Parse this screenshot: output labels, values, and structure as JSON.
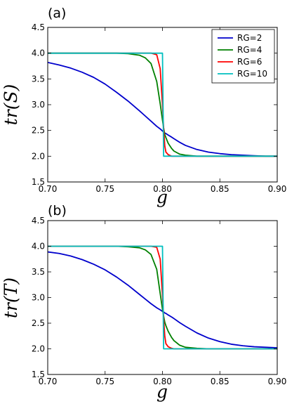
{
  "chart_data": [
    {
      "type": "line",
      "panel_label": "(a)",
      "xlabel": "g",
      "ylabel": "tr(S)",
      "xlim": [
        0.7,
        0.9
      ],
      "ylim": [
        1.5,
        4.5
      ],
      "xticks": [
        "0.70",
        "0.75",
        "0.80",
        "0.85",
        "0.90"
      ],
      "yticks": [
        "1.5",
        "2.0",
        "2.5",
        "3.0",
        "3.5",
        "4.0",
        "4.5"
      ],
      "grid": false,
      "legend": "top-right",
      "x": [
        0.7,
        0.71,
        0.72,
        0.73,
        0.74,
        0.75,
        0.76,
        0.77,
        0.78,
        0.785,
        0.79,
        0.795,
        0.798,
        0.8,
        0.801,
        0.802,
        0.803,
        0.805,
        0.808,
        0.81,
        0.815,
        0.82,
        0.83,
        0.84,
        0.85,
        0.86,
        0.87,
        0.88,
        0.89,
        0.9
      ],
      "series": [
        {
          "name": "RG=2",
          "color": "#0000cc",
          "values": [
            3.82,
            3.77,
            3.71,
            3.63,
            3.53,
            3.4,
            3.24,
            3.07,
            2.88,
            2.78,
            2.68,
            2.58,
            2.53,
            2.49,
            2.47,
            2.45,
            2.44,
            2.41,
            2.37,
            2.34,
            2.27,
            2.21,
            2.13,
            2.08,
            2.05,
            2.03,
            2.02,
            2.01,
            2.0,
            2.0
          ]
        },
        {
          "name": "RG=4",
          "color": "#008000",
          "values": [
            4.0,
            4.0,
            4.0,
            4.0,
            4.0,
            4.0,
            4.0,
            3.99,
            3.96,
            3.91,
            3.8,
            3.45,
            3.02,
            2.7,
            2.55,
            2.42,
            2.36,
            2.25,
            2.15,
            2.1,
            2.04,
            2.02,
            2.0,
            2.0,
            2.0,
            2.0,
            2.0,
            2.0,
            2.0,
            2.0
          ]
        },
        {
          "name": "RG=6",
          "color": "#ff0000",
          "values": [
            4.0,
            4.0,
            4.0,
            4.0,
            4.0,
            4.0,
            4.0,
            4.0,
            4.0,
            4.0,
            4.0,
            3.97,
            3.7,
            3.0,
            2.55,
            2.2,
            2.08,
            2.03,
            2.0,
            2.0,
            2.0,
            2.0,
            2.0,
            2.0,
            2.0,
            2.0,
            2.0,
            2.0,
            2.0,
            2.0
          ]
        },
        {
          "name": "RG=10",
          "color": "#00bfbf",
          "values": [
            4.0,
            4.0,
            4.0,
            4.0,
            4.0,
            4.0,
            4.0,
            4.0,
            4.0,
            4.0,
            4.0,
            4.0,
            4.0,
            4.0,
            2.0,
            2.0,
            2.0,
            2.0,
            2.0,
            2.0,
            2.0,
            2.0,
            2.0,
            2.0,
            2.0,
            2.0,
            2.0,
            2.0,
            2.0,
            2.0
          ]
        }
      ]
    },
    {
      "type": "line",
      "panel_label": "(b)",
      "xlabel": "g",
      "ylabel": "tr(T)",
      "xlim": [
        0.7,
        0.9
      ],
      "ylim": [
        1.5,
        4.5
      ],
      "xticks": [
        "0.70",
        "0.75",
        "0.80",
        "0.85",
        "0.90"
      ],
      "yticks": [
        "1.5",
        "2.0",
        "2.5",
        "3.0",
        "3.5",
        "4.0",
        "4.5"
      ],
      "grid": false,
      "legend": "none",
      "x": [
        0.7,
        0.71,
        0.72,
        0.73,
        0.74,
        0.75,
        0.76,
        0.77,
        0.78,
        0.785,
        0.79,
        0.795,
        0.798,
        0.8,
        0.801,
        0.802,
        0.803,
        0.805,
        0.808,
        0.81,
        0.815,
        0.82,
        0.83,
        0.84,
        0.85,
        0.86,
        0.87,
        0.88,
        0.89,
        0.9
      ],
      "series": [
        {
          "name": "RG=2",
          "color": "#0000cc",
          "values": [
            3.89,
            3.86,
            3.81,
            3.74,
            3.65,
            3.54,
            3.4,
            3.24,
            3.06,
            2.97,
            2.88,
            2.8,
            2.76,
            2.73,
            2.72,
            2.7,
            2.69,
            2.66,
            2.62,
            2.59,
            2.51,
            2.44,
            2.31,
            2.21,
            2.14,
            2.09,
            2.06,
            2.04,
            2.03,
            2.02
          ]
        },
        {
          "name": "RG=4",
          "color": "#008000",
          "values": [
            4.0,
            4.0,
            4.0,
            4.0,
            4.0,
            4.0,
            4.0,
            3.99,
            3.97,
            3.93,
            3.84,
            3.55,
            3.08,
            2.77,
            2.64,
            2.52,
            2.45,
            2.34,
            2.22,
            2.16,
            2.07,
            2.03,
            2.01,
            2.0,
            2.0,
            2.0,
            2.0,
            2.0,
            2.0,
            2.0
          ]
        },
        {
          "name": "RG=6",
          "color": "#ff0000",
          "values": [
            4.0,
            4.0,
            4.0,
            4.0,
            4.0,
            4.0,
            4.0,
            4.0,
            4.0,
            4.0,
            4.0,
            3.98,
            3.75,
            3.05,
            2.6,
            2.25,
            2.1,
            2.04,
            2.01,
            2.0,
            2.0,
            2.0,
            2.0,
            2.0,
            2.0,
            2.0,
            2.0,
            2.0,
            2.0,
            2.0
          ]
        },
        {
          "name": "RG=10",
          "color": "#00bfbf",
          "values": [
            4.0,
            4.0,
            4.0,
            4.0,
            4.0,
            4.0,
            4.0,
            4.0,
            4.0,
            4.0,
            4.0,
            4.0,
            4.0,
            4.0,
            2.0,
            2.0,
            2.0,
            2.0,
            2.0,
            2.0,
            2.0,
            2.0,
            2.0,
            2.0,
            2.0,
            2.0,
            2.0,
            2.0,
            2.0,
            2.0
          ]
        }
      ]
    }
  ]
}
